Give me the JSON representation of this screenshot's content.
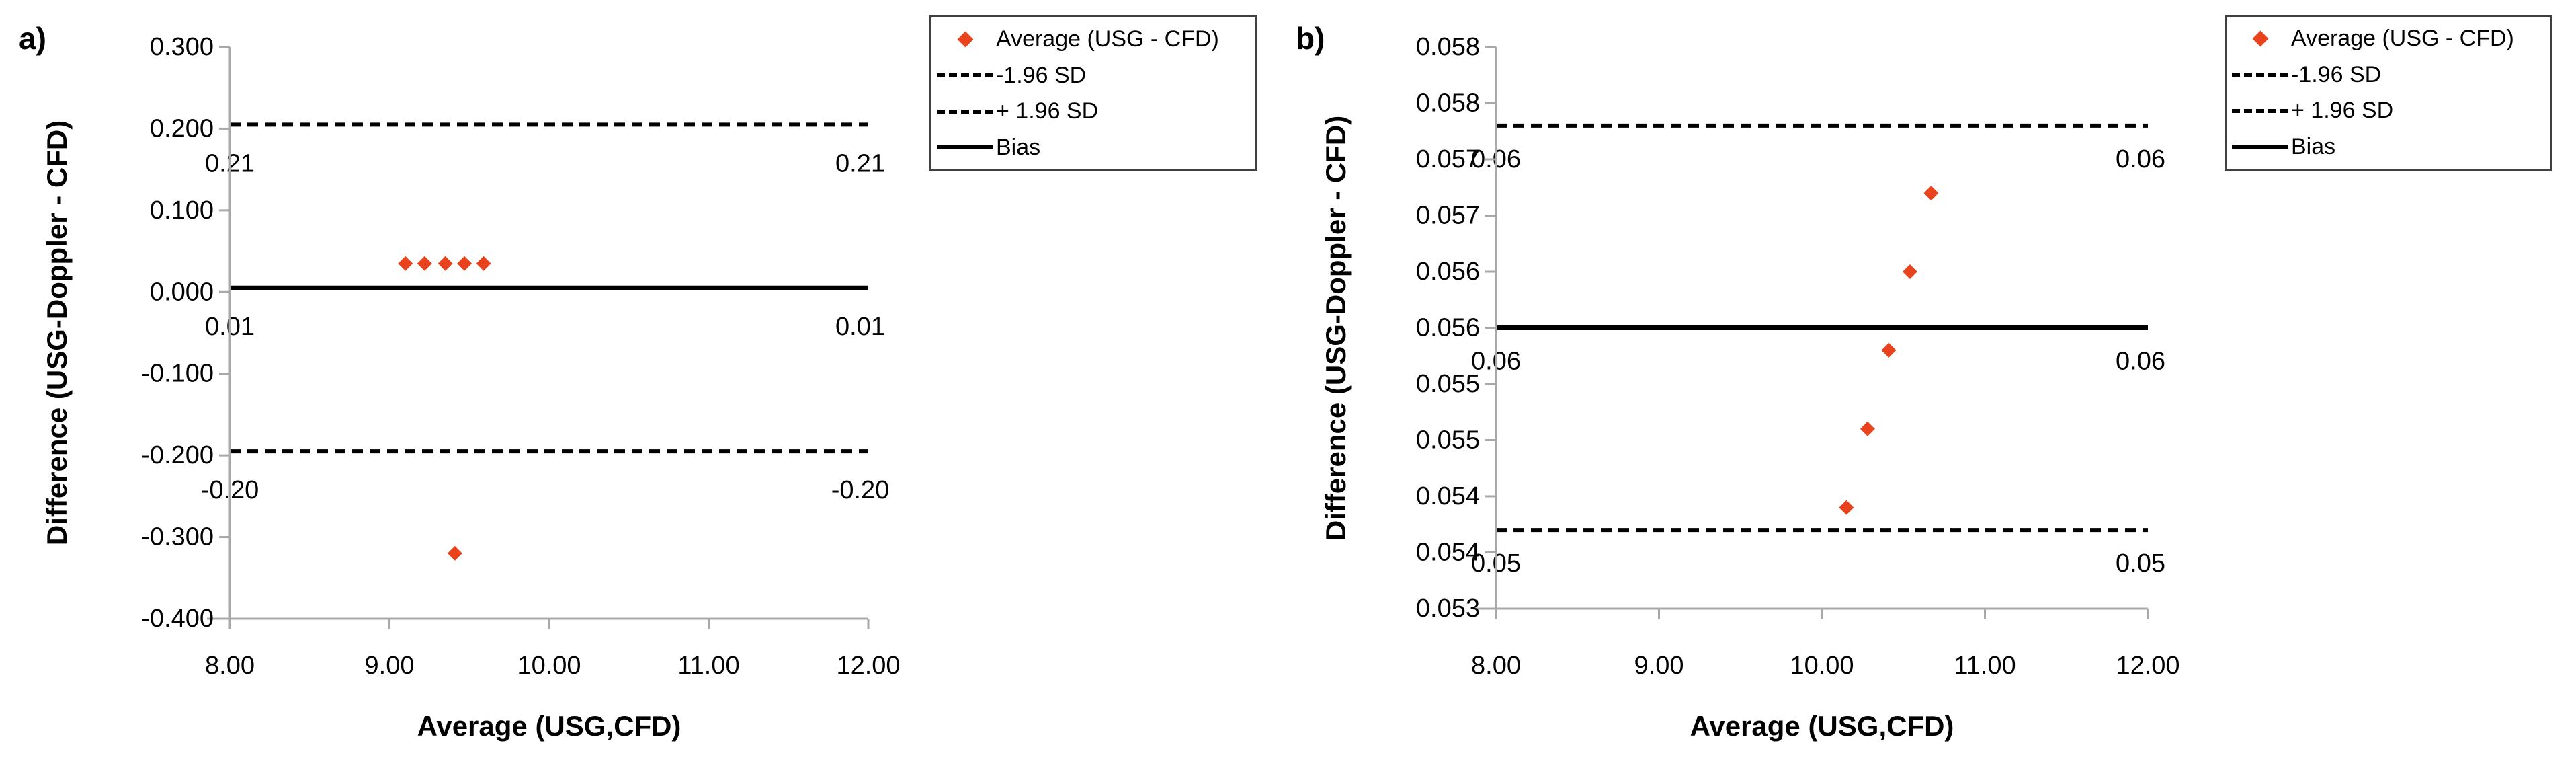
{
  "figure": {
    "background": "#ffffff",
    "description": "Two Bland-Altman agreement plots comparing USG-Doppler and CFD measurements"
  },
  "colors": {
    "marker": "#E8431C",
    "line": "#000000",
    "axis": "#A8A8A8",
    "text": "#000000"
  },
  "legend": {
    "items": [
      {
        "label": "Average (USG - CFD)",
        "swatch": "diamond"
      },
      {
        "label": "-1.96 SD",
        "swatch": "dashed"
      },
      {
        "label": "+ 1.96 SD",
        "swatch": "dashed"
      },
      {
        "label": "Bias",
        "swatch": "solid"
      }
    ]
  },
  "chart_data": [
    {
      "type": "scatter",
      "panel_label": "a)",
      "xlabel": "Average (USG,CFD)",
      "ylabel": "Difference (USG-Doppler - CFD)",
      "xlim": [
        8,
        12
      ],
      "ylim": [
        -0.4,
        0.3
      ],
      "grid": false,
      "legend_position": "outside-top-right",
      "x_ticks": [
        {
          "v": 8,
          "label": "8.00"
        },
        {
          "v": 9,
          "label": "9.00"
        },
        {
          "v": 10,
          "label": "10.00"
        },
        {
          "v": 11,
          "label": "11.00"
        },
        {
          "v": 12,
          "label": "12.00"
        }
      ],
      "y_ticks": [
        {
          "v": 0.3,
          "label": "0.300"
        },
        {
          "v": 0.2,
          "label": "0.200"
        },
        {
          "v": 0.1,
          "label": "0.100"
        },
        {
          "v": 0.0,
          "label": "0.000"
        },
        {
          "v": -0.1,
          "label": "-0.100"
        },
        {
          "v": -0.2,
          "label": "-0.200"
        },
        {
          "v": -0.3,
          "label": "-0.300"
        },
        {
          "v": -0.4,
          "label": "-0.400"
        }
      ],
      "lines": [
        {
          "name": "+ 1.96 SD",
          "y": 0.205,
          "style": "dashed",
          "label_left": "0.21",
          "label_right": "0.21"
        },
        {
          "name": "Bias",
          "y": 0.005,
          "style": "solid",
          "label_left": "0.01",
          "label_right": "0.01"
        },
        {
          "name": "-1.96 SD",
          "y": -0.195,
          "style": "dashed",
          "label_left": "-0.20",
          "label_right": "-0.20"
        }
      ],
      "series": [
        {
          "name": "Average (USG - CFD)",
          "marker": "diamond",
          "points": [
            [
              9.1,
              0.035
            ],
            [
              9.22,
              0.035
            ],
            [
              9.35,
              0.035
            ],
            [
              9.47,
              0.035
            ],
            [
              9.59,
              0.035
            ],
            [
              9.41,
              -0.32
            ]
          ]
        }
      ]
    },
    {
      "type": "scatter",
      "panel_label": "b)",
      "xlabel": "Average (USG,CFD)",
      "ylabel": "Difference (USG-Doppler - CFD)",
      "xlim": [
        8,
        12
      ],
      "ylim": [
        0.053,
        0.058
      ],
      "grid": false,
      "legend_position": "outside-top-right",
      "x_ticks": [
        {
          "v": 8,
          "label": "8.00"
        },
        {
          "v": 9,
          "label": "9.00"
        },
        {
          "v": 10,
          "label": "10.00"
        },
        {
          "v": 11,
          "label": "11.00"
        },
        {
          "v": 12,
          "label": "12.00"
        }
      ],
      "y_ticks": [
        {
          "v": 0.058,
          "label": "0.058"
        },
        {
          "v": 0.0575,
          "label": "0.058"
        },
        {
          "v": 0.057,
          "label": "0.057"
        },
        {
          "v": 0.0565,
          "label": "0.057"
        },
        {
          "v": 0.056,
          "label": "0.056"
        },
        {
          "v": 0.0555,
          "label": "0.056"
        },
        {
          "v": 0.055,
          "label": "0.055"
        },
        {
          "v": 0.0545,
          "label": "0.055"
        },
        {
          "v": 0.054,
          "label": "0.054"
        },
        {
          "v": 0.0535,
          "label": "0.054"
        },
        {
          "v": 0.053,
          "label": "0.053"
        }
      ],
      "lines": [
        {
          "name": "+ 1.96 SD",
          "y": 0.0573,
          "style": "dashed",
          "label_left": "0.06",
          "label_right": "0.06"
        },
        {
          "name": "Bias",
          "y": 0.0555,
          "style": "solid",
          "label_left": "0.06",
          "label_right": "0.06"
        },
        {
          "name": "-1.96 SD",
          "y": 0.0537,
          "style": "dashed",
          "label_left": "0.05",
          "label_right": "0.05"
        }
      ],
      "series": [
        {
          "name": "Average (USG - CFD)",
          "marker": "diamond",
          "points": [
            [
              10.15,
              0.0539
            ],
            [
              10.28,
              0.0546
            ],
            [
              10.41,
              0.0553
            ],
            [
              10.54,
              0.056
            ],
            [
              10.67,
              0.0567
            ]
          ]
        }
      ]
    }
  ]
}
